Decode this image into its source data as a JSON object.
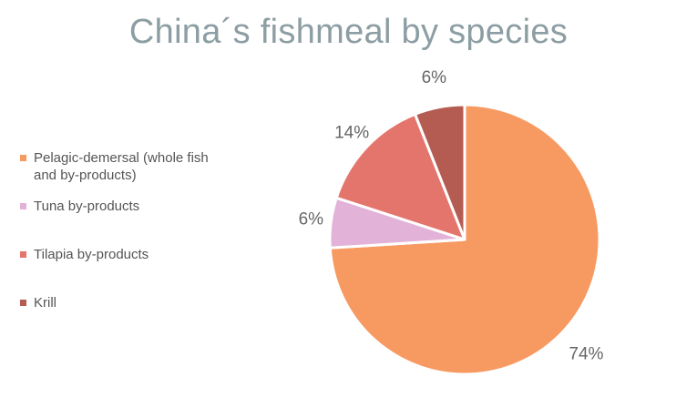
{
  "chart_data": {
    "type": "pie",
    "title": "China´s fishmeal by species",
    "legend_position": "left",
    "categories": [
      "Pelagic-demersal  (whole fish\nand by-products)",
      "Tuna by-products",
      "Tilapia by-products",
      "Krill"
    ],
    "values": [
      74,
      6,
      14,
      6
    ],
    "data_labels": [
      "74%",
      "6%",
      "14%",
      "6%"
    ],
    "colors": [
      "#f79a62",
      "#e2b2d8",
      "#e4756c",
      "#b55c52"
    ]
  }
}
